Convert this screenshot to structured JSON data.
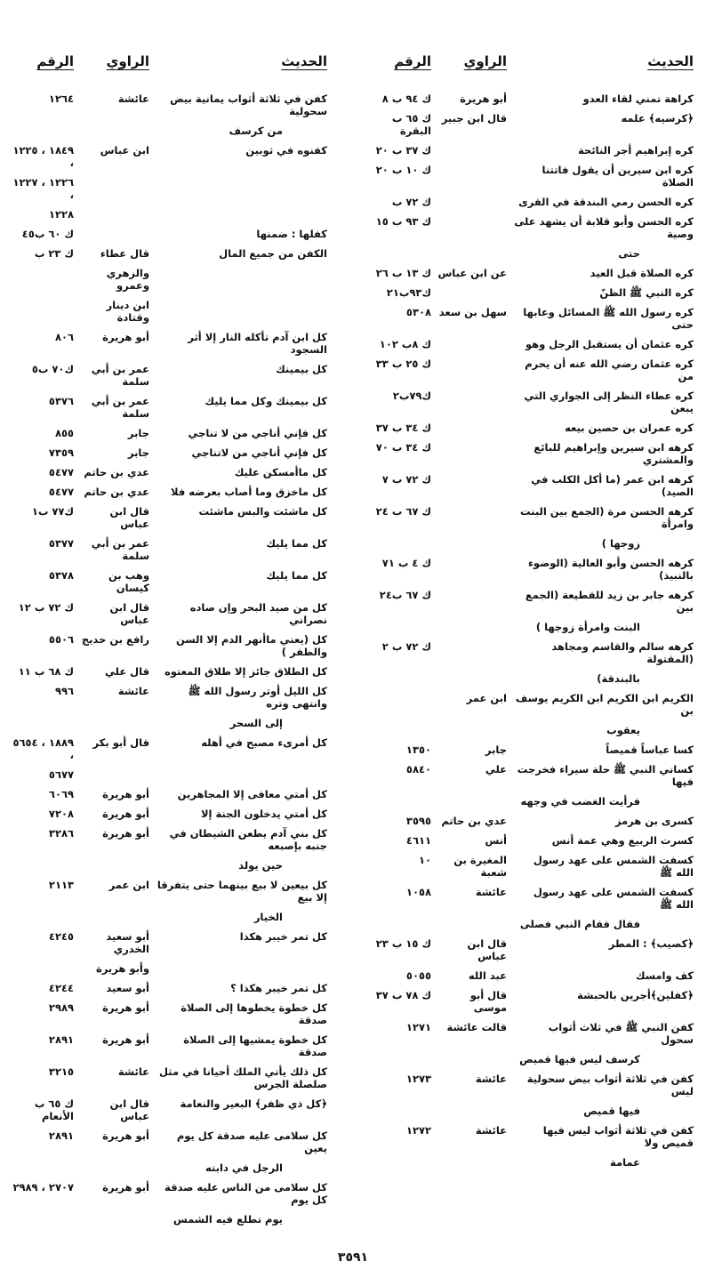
{
  "headers": {
    "hadith": "الحديث",
    "narrator": "الراوي",
    "number": "الرقم"
  },
  "right_column": [
    {
      "hadith": "كراهة تمني لقاء العدو",
      "narrator": "أبو هريرة",
      "number": "ك ٩٤ ب ٨"
    },
    {
      "hadith": "﴿كرسيه﴾ علمه",
      "narrator": "قال ابن جبير",
      "number": "ك ٦٥ ب البقرة"
    },
    {
      "hadith": "كره إبراهيم أجر النائحة",
      "narrator": "",
      "number": "ك ٣٧ ب ٢٠"
    },
    {
      "hadith": "كره ابن سيرين أن يقول فاتتنا الصلاة",
      "narrator": "",
      "number": "ك ١٠ ب ٢٠"
    },
    {
      "hadith": "كره الحسن رمي البندقة في القرى",
      "narrator": "",
      "number": "ك ٧٢ ب"
    },
    {
      "hadith": "كره الحسن وأبو قلابة أن يشهد على وصية",
      "narrator": "",
      "number": "ك ٩٣ ب ١٥"
    },
    {
      "cont": "حتى"
    },
    {
      "hadith": "كره الصلاة قبل العيد",
      "narrator": "عن ابن عباس",
      "number": "ك ١٣ ب ٢٦"
    },
    {
      "hadith": "كره النبي ﷺ الظنّ",
      "narrator": "",
      "number": "ك٩٣ب٢١"
    },
    {
      "hadith": "كره رسول الله ﷺ المسائل وعابها حتى",
      "narrator": "سهل بن سعد",
      "number": "٥٣٠٨"
    },
    {
      "hadith": "كره عثمان أن يستقبل الرجل وهو",
      "narrator": "",
      "number": "ك ٨ب ١٠٢"
    },
    {
      "hadith": "كره عثمان رضي الله عنه أن يحرم من",
      "narrator": "",
      "number": "ك ٢٥ ب ٣٣"
    },
    {
      "hadith": "كره عطاء النظر إلى الجواري التي يبعن",
      "narrator": "",
      "number": "ك٧٩ب٢"
    },
    {
      "hadith": "كره عمران بن حصين بيعه",
      "narrator": "",
      "number": "ك ٣٤ ب ٣٧"
    },
    {
      "hadith": "كرهه ابن سيرين وإبراهيم للبائع والمشتري",
      "narrator": "",
      "number": "ك ٣٤ ب ٧٠"
    },
    {
      "hadith": "كرهه ابن عمر (ما أكل الكلب في الصيد)",
      "narrator": "",
      "number": "ك ٧٢ ب ٧"
    },
    {
      "hadith": "كرهه الحسن مرة (الجمع بين البنت وامرأة",
      "narrator": "",
      "number": "ك ٦٧ ب ٢٤"
    },
    {
      "cont": "زوجها )"
    },
    {
      "hadith": "كرهه الحسن وأبو العالية (الوضوء بالنبيذ)",
      "narrator": "",
      "number": "ك ٤ ب ٧١"
    },
    {
      "hadith": "كرهه جابر بن زيد للقطيعة (الجمع بين",
      "narrator": "",
      "number": "ك ٦٧ ب٢٤"
    },
    {
      "cont": "البنت وامرأة زوجها )"
    },
    {
      "hadith": "كرهه سالم والقاسم ومجاهد (المقتولة",
      "narrator": "",
      "number": "ك ٧٢ ب ٢"
    },
    {
      "cont": "بالبندقة)"
    },
    {
      "hadith": "الكريم ابن الكريم ابن الكريم يوسف بن",
      "narrator": "ابن عمر",
      "number": ""
    },
    {
      "cont": "يعقوب"
    },
    {
      "hadith": "كسا عباساً قميصاً",
      "narrator": "جابر",
      "number": "١٣٥٠"
    },
    {
      "hadith": "كساني النبي ﷺ حلة سيراء فخرجت فيها",
      "narrator": "علي",
      "number": "٥٨٤٠"
    },
    {
      "cont": "فرأيت الغضب في وجهه"
    },
    {
      "hadith": "كسرى بن هرمز",
      "narrator": "عدي بن حاتم",
      "number": "٣٥٩٥"
    },
    {
      "hadith": "كسرت الربيع وهي عمة أنس",
      "narrator": "أنس",
      "number": "٤٦١١"
    },
    {
      "hadith": "كسفت الشمس على عهد رسول الله ﷺ",
      "narrator": "المغيرة بن شعبة",
      "number": "١٠"
    },
    {
      "hadith": "كسفت الشمس على عهد رسول الله ﷺ",
      "narrator": "عائشة",
      "number": "١٠٥٨"
    },
    {
      "cont": "فقال فقام النبي فصلى"
    },
    {
      "hadith": "﴿كصيب﴾ : المطر",
      "narrator": "قال ابن عباس",
      "number": "ك ١٥ ب ٢٣"
    },
    {
      "hadith": "كف وامسك",
      "narrator": "عبد الله",
      "number": "٥٠٥٥"
    },
    {
      "hadith": "﴿كفلين﴾أجرين بالحبشة",
      "narrator": "قال أبو موسى",
      "number": "ك ٧٨ ب ٣٧"
    },
    {
      "hadith": "كفن النبي ﷺ في ثلاث أثواب سحول",
      "narrator": "قالت عائشة",
      "number": "١٢٧١"
    },
    {
      "cont": "كرسف ليس فيها قميص"
    },
    {
      "hadith": "كفن في ثلاثة أثواب بيض سحولية ليس",
      "narrator": "عائشة",
      "number": "١٢٧٣"
    },
    {
      "cont": "فيها قميص"
    },
    {
      "hadith": "كفن في ثلاثة أثواب ليس فيها قميص ولا",
      "narrator": "عائشة",
      "number": "١٢٧٢"
    },
    {
      "cont": "عمامة"
    }
  ],
  "left_column": [
    {
      "hadith": "كفن في ثلاثة أثواب يمانية بيض سحولية",
      "narrator": "عائشة",
      "number": "١٢٦٤"
    },
    {
      "cont": "من كرسف"
    },
    {
      "hadith": "كفنوه في ثوبين",
      "narrator": "ابن عباس",
      "number": "١٨٤٩ ، ١٢٢٥ ،"
    },
    {
      "hadith": "",
      "narrator": "",
      "number": "١٢٢٦ ، ١٢٢٧ ،"
    },
    {
      "hadith": "",
      "narrator": "",
      "number": "١٢٢٨"
    },
    {
      "hadith": "كفلها : ضمنها",
      "narrator": "",
      "number": "ك ٦٠ ب٤٥"
    },
    {
      "hadith": "الكفن من جميع المال",
      "narrator": "قال عطاء",
      "number": "ك ٢٣ ب"
    },
    {
      "hadith": "",
      "narrator": "والزهري وعمرو",
      "number": ""
    },
    {
      "hadith": "",
      "narrator": "ابن دينار وقتادة",
      "number": ""
    },
    {
      "hadith": "كل ابن آدم تأكله النار إلا أثر السجود",
      "narrator": "أبو هريرة",
      "number": "٨٠٦"
    },
    {
      "hadith": "كل بيمينك",
      "narrator": "عمر بن أبي سلمة",
      "number": "ك٧٠ ب٥"
    },
    {
      "hadith": "كل بيمينك وكل مما يليك",
      "narrator": "عمر بن أبي سلمة",
      "number": "٥٣٧٦"
    },
    {
      "hadith": "كل فإني أناجي من لا تناجي",
      "narrator": "جابر",
      "number": "٨٥٥"
    },
    {
      "hadith": "كل فإني أناجي من لاتناجي",
      "narrator": "جابر",
      "number": "٧٣٥٩"
    },
    {
      "hadith": "كل ماأمسكن عليك",
      "narrator": "عدي بن حاتم",
      "number": "٥٤٧٧"
    },
    {
      "hadith": "كل ماخزق وما أصاب بعرضه فلا",
      "narrator": "عدي بن حاتم",
      "number": "٥٤٧٧"
    },
    {
      "hadith": "كل ماشئت والبس ماشئت",
      "narrator": "قال ابن عباس",
      "number": "ك٧٧ ب١"
    },
    {
      "hadith": "كل مما يليك",
      "narrator": "عمر بن أبي سلمة",
      "number": "٥٣٧٧"
    },
    {
      "hadith": "كل مما يليك",
      "narrator": "وهب بن كيسان",
      "number": "٥٣٧٨"
    },
    {
      "hadith": "كل من صيد البحر وإن صاده نصراني",
      "narrator": "قال ابن عباس",
      "number": "ك ٧٢ ب ١٢"
    },
    {
      "hadith": "كل (يعني ماأنهر الدم إلا السن والظفر )",
      "narrator": "رافع بن خديج",
      "number": "٥٥٠٦"
    },
    {
      "hadith": "كل الطلاق جائز إلا طلاق المعتوه",
      "narrator": "قال علي",
      "number": "ك ٦٨ ب ١١"
    },
    {
      "hadith": "كل الليل أوتر رسول الله ﷺ وانتهى وتره",
      "narrator": "عائشة",
      "number": "٩٩٦"
    },
    {
      "cont": "إلى السحر"
    },
    {
      "hadith": "كل أمرىء مصبح في أهله",
      "narrator": "قال أبو بكر",
      "number": "١٨٨٩ ، ٥٦٥٤ ،"
    },
    {
      "hadith": "",
      "narrator": "",
      "number": "٥٦٧٧"
    },
    {
      "hadith": "كل أمتي معافى إلا المجاهرين",
      "narrator": "أبو هريرة",
      "number": "٦٠٦٩"
    },
    {
      "hadith": "كل أمتي يدخلون الجنة إلا",
      "narrator": "أبو هريرة",
      "number": "٧٢٠٨"
    },
    {
      "hadith": "كل بني آدم يطعن الشيطان في جنبه بإصبعه",
      "narrator": "أبو هريرة",
      "number": "٣٢٨٦"
    },
    {
      "cont": "حين يولد"
    },
    {
      "hadith": "كل بيعين لا بيع بينهما حتى يتفرقا إلا بيع",
      "narrator": "ابن عمر",
      "number": "٢١١٣"
    },
    {
      "cont": "الخيار"
    },
    {
      "hadith": "كل تمر خيبر هكذا",
      "narrator": "أبو سعيد الخدري",
      "number": "٤٢٤٥"
    },
    {
      "hadith": "",
      "narrator": "وأبو هريرة",
      "number": ""
    },
    {
      "hadith": "كل تمر خيبر هكذا ؟",
      "narrator": "أبو سعيد",
      "number": "٤٢٤٤"
    },
    {
      "hadith": "كل خطوة يخطوها إلى الصلاة صدقة",
      "narrator": "أبو هريرة",
      "number": "٢٩٨٩"
    },
    {
      "hadith": "كل خطوة يمشيها إلى الصلاة صدقة",
      "narrator": "أبو هريرة",
      "number": "٢٨٩١"
    },
    {
      "hadith": "كل ذلك يأتي الملك أحيانا في مثل صلصلة الجرس",
      "narrator": "عائشة",
      "number": "٣٢١٥"
    },
    {
      "hadith": "﴿كل ذي ظفر﴾ البعير والنعامة",
      "narrator": "قال ابن عباس",
      "number": "ك ٦٥ ب الأنعام"
    },
    {
      "hadith": "كل سلامى عليه صدقة كل يوم يعين",
      "narrator": "أبو هريرة",
      "number": "٢٨٩١"
    },
    {
      "cont": "الرجل في دابته"
    },
    {
      "hadith": "كل سلامى من الناس عليه صدقة كل يوم",
      "narrator": "أبو هريرة",
      "number": "٢٧٠٧ ، ٢٩٨٩"
    },
    {
      "cont": "يوم تطلع فيه الشمس"
    }
  ],
  "page_number": "٣٥٩١"
}
